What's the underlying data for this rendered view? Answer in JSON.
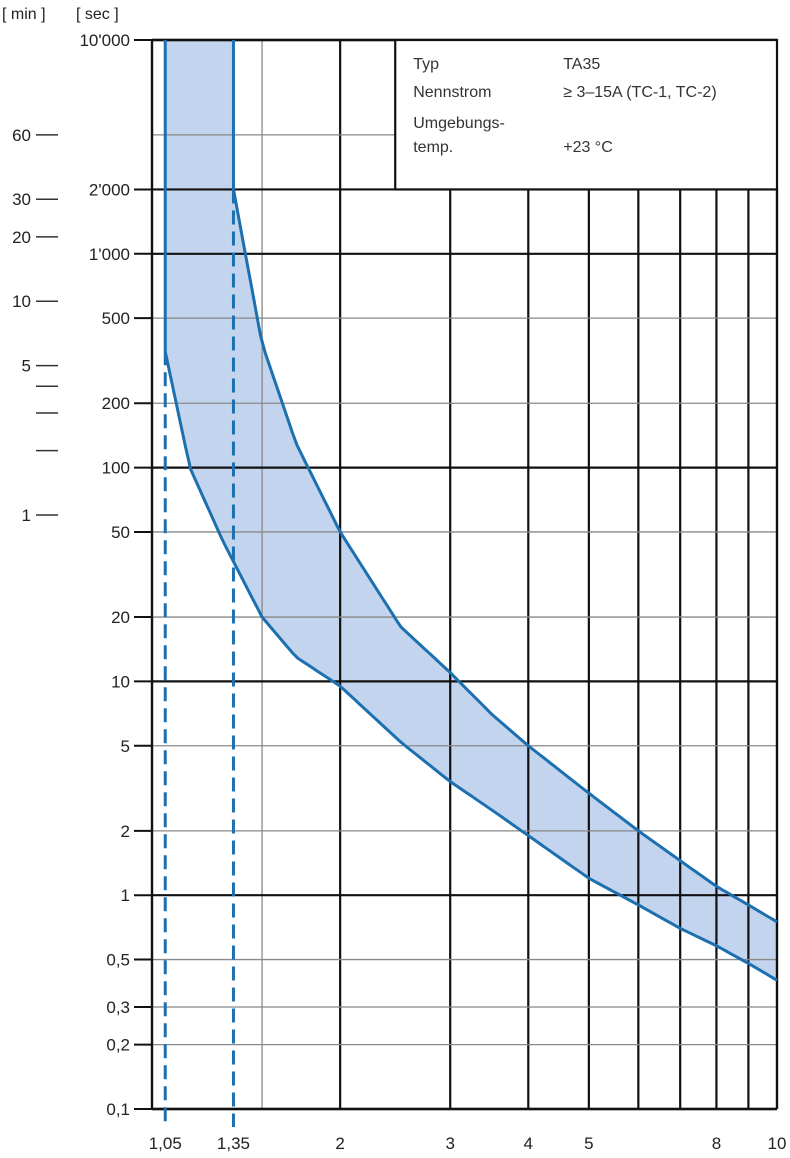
{
  "chart_data": {
    "type": "area",
    "x_scale": "log",
    "y_scale": "log",
    "xlim": [
      1,
      10
    ],
    "ylim": [
      0.1,
      10000
    ],
    "y_unit_left": "[ min ]",
    "y_unit_right": "[ sec ]",
    "x_ticks": [
      {
        "value": 1.05,
        "label": "1,05"
      },
      {
        "value": 1.35,
        "label": "1,35"
      },
      {
        "value": 2,
        "label": "2"
      },
      {
        "value": 3,
        "label": "3"
      },
      {
        "value": 4,
        "label": "4"
      },
      {
        "value": 5,
        "label": "5"
      },
      {
        "value": 8,
        "label": "8"
      },
      {
        "value": 10,
        "label": "10"
      }
    ],
    "y_ticks_sec": [
      {
        "value": 10000,
        "label": "10'000"
      },
      {
        "value": 2000,
        "label": "2'000"
      },
      {
        "value": 1000,
        "label": "1'000"
      },
      {
        "value": 500,
        "label": "500"
      },
      {
        "value": 200,
        "label": "200"
      },
      {
        "value": 100,
        "label": "100"
      },
      {
        "value": 50,
        "label": "50"
      },
      {
        "value": 20,
        "label": "20"
      },
      {
        "value": 10,
        "label": "10"
      },
      {
        "value": 5,
        "label": "5"
      },
      {
        "value": 2,
        "label": "2"
      },
      {
        "value": 1,
        "label": "1"
      },
      {
        "value": 0.5,
        "label": "0,5"
      },
      {
        "value": 0.3,
        "label": "0,3"
      },
      {
        "value": 0.2,
        "label": "0,2"
      },
      {
        "value": 0.1,
        "label": "0,1"
      }
    ],
    "y_ticks_min": [
      {
        "value_sec": 3600,
        "label": "60"
      },
      {
        "value_sec": 1800,
        "label": "30"
      },
      {
        "value_sec": 1200,
        "label": "20"
      },
      {
        "value_sec": 600,
        "label": "10"
      },
      {
        "value_sec": 300,
        "label": "5"
      },
      {
        "value_sec": 240,
        "label": ""
      },
      {
        "value_sec": 180,
        "label": ""
      },
      {
        "value_sec": 120,
        "label": ""
      },
      {
        "value_sec": 60,
        "label": "1"
      }
    ],
    "reference_lines_x": [
      1.05,
      1.35
    ],
    "series": [
      {
        "role": "upper-bound",
        "x": [
          1.35,
          1.5,
          1.7,
          2.0,
          2.5,
          3.0,
          3.5,
          4.0,
          5.0,
          6.0,
          7.0,
          8.0,
          9.0,
          10.0
        ],
        "y": [
          2000,
          380,
          130,
          50,
          18,
          11,
          7,
          5,
          3,
          2,
          1.45,
          1.1,
          0.9,
          0.75
        ]
      },
      {
        "role": "lower-bound",
        "x": [
          1.05,
          1.15,
          1.3,
          1.5,
          1.7,
          2.0,
          2.5,
          3.0,
          3.5,
          4.0,
          5.0,
          6.0,
          7.0,
          8.0,
          9.0,
          10.0
        ],
        "y": [
          350,
          100,
          45,
          20,
          13,
          9.5,
          5.2,
          3.4,
          2.5,
          1.9,
          1.2,
          0.9,
          0.7,
          0.58,
          0.48,
          0.4
        ]
      }
    ],
    "colors": {
      "curve": "#1d70b0",
      "band": "#c3d4ee",
      "grid_major": "#111111",
      "grid_minor": "#888888"
    }
  },
  "info_box": {
    "rows": [
      {
        "label": "Typ",
        "value": "TA35"
      },
      {
        "label": "Nennstrom",
        "value": "≥ 3–15A (TC-1, TC-2)"
      },
      {
        "label": "Umgebungs-",
        "value": ""
      },
      {
        "label": "temp.",
        "value": "+23 °C"
      }
    ]
  }
}
